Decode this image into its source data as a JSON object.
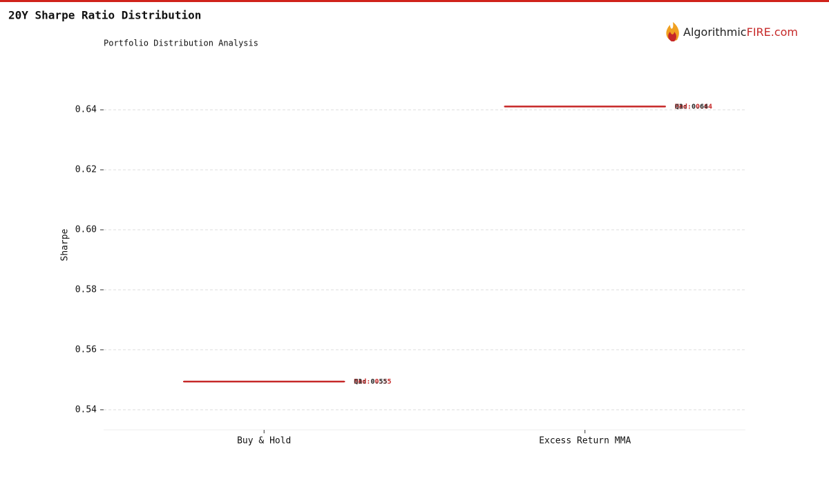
{
  "header": {
    "title": "20Y Sharpe Ratio Distribution",
    "logo_text": "Algorithmic",
    "logo_accent": "FIRE.com"
  },
  "chart_data": {
    "type": "box",
    "subtitle": "Portfolio Distribution Analysis",
    "y_label": "Sharpe",
    "categories": [
      "Buy & Hold",
      "Excess Return MMA"
    ],
    "q1": [
      0.5494,
      0.6411
    ],
    "median": [
      0.5494,
      0.6411
    ],
    "q3": [
      0.5494,
      0.6411
    ],
    "value_labels": {
      "q1": [
        "Q1: 0.55",
        "Q1: 0.64"
      ],
      "median": [
        "Med: 0.55",
        "Med: 0.64"
      ],
      "q3": [
        "Q3: 0.55",
        "Q3: 0.64"
      ]
    },
    "color": "#c62828",
    "ylim": [
      0.5333,
      0.6513
    ],
    "yticks": [
      {
        "value": 0.54,
        "label": "0.54"
      },
      {
        "value": 0.56,
        "label": "0.56"
      },
      {
        "value": 0.58,
        "label": "0.58"
      },
      {
        "value": 0.6,
        "label": "0.60"
      },
      {
        "value": 0.62,
        "label": "0.62"
      },
      {
        "value": 0.64,
        "label": "0.64"
      }
    ],
    "grid": true
  }
}
